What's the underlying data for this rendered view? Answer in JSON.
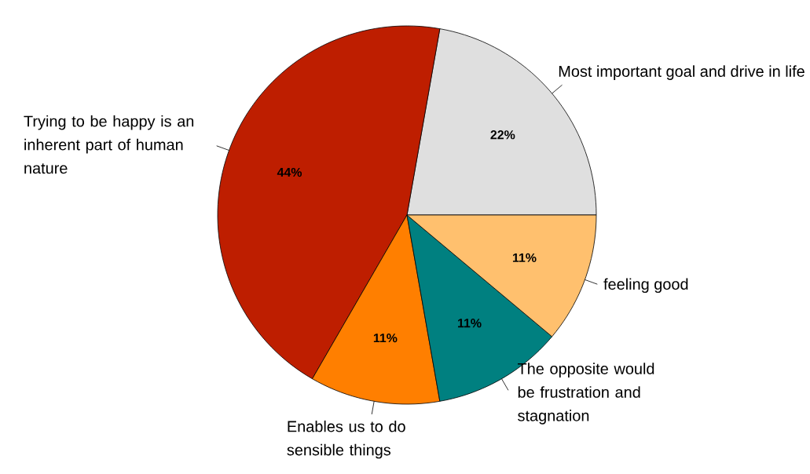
{
  "chart_data": {
    "type": "pie",
    "categories": [
      "Most important goal and drive in life",
      "Trying to be happy is an inherent part of human nature",
      "Enables us to do sensible things",
      "The opposite would be frustration and stagnation",
      "feeling good"
    ],
    "values": [
      22,
      44,
      11,
      11,
      11
    ],
    "value_labels": [
      "22%",
      "44%",
      "11%",
      "11%",
      "11%"
    ],
    "colors": [
      "#dfdfdf",
      "#be1e00",
      "#ff7f00",
      "#008080",
      "#ffc06e"
    ]
  }
}
